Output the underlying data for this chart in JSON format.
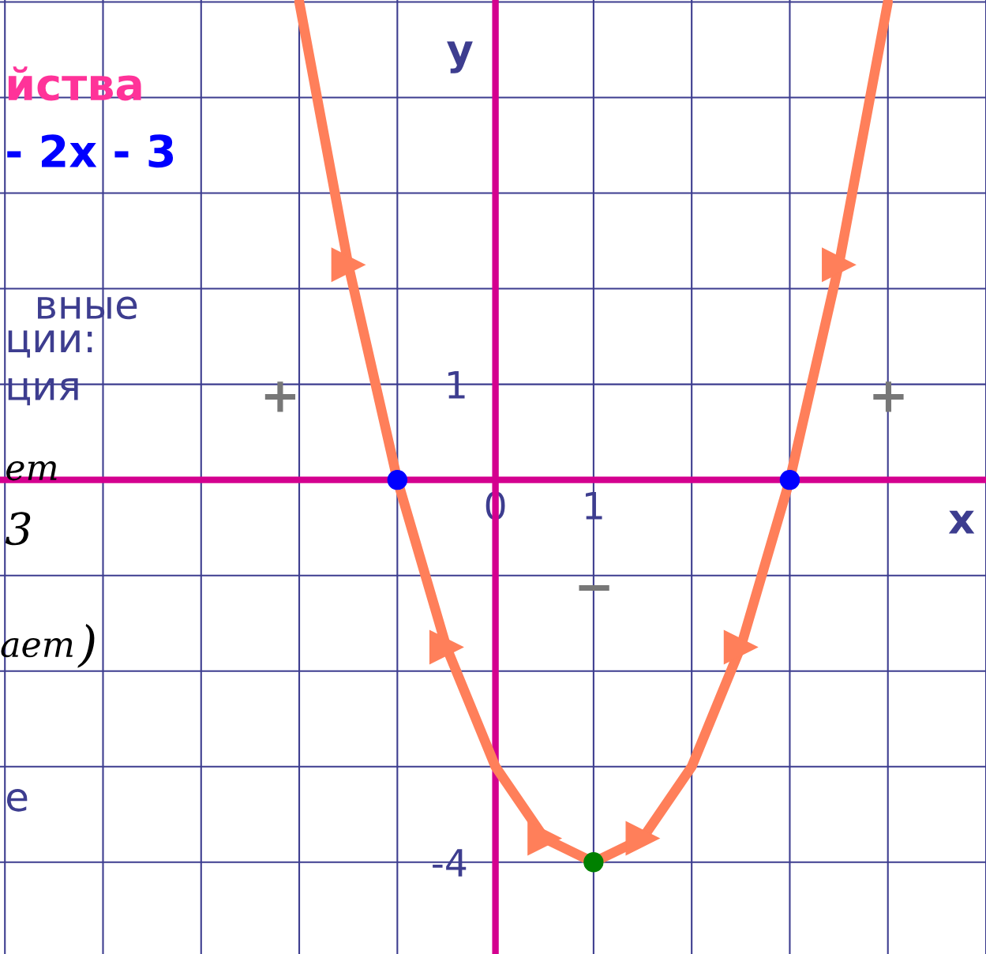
{
  "chart_data": {
    "type": "line",
    "xlabel": "x",
    "ylabel": "y",
    "xlim": [
      -5.05,
      5.0
    ],
    "ylim": [
      -4.96,
      5.02
    ],
    "xticks": [
      {
        "value": -5,
        "label": null
      },
      {
        "value": -4,
        "label": null
      },
      {
        "value": -3,
        "label": null
      },
      {
        "value": -2,
        "label": null
      },
      {
        "value": -1,
        "label": null
      },
      0,
      1,
      {
        "value": 2,
        "label": null
      },
      {
        "value": 3,
        "label": null
      },
      {
        "value": 4,
        "label": null
      },
      {
        "value": 5,
        "label": null
      }
    ],
    "yticks": [
      {
        "value": -4,
        "label": "-4"
      },
      {
        "value": -3,
        "label": null
      },
      {
        "value": -2,
        "label": null
      },
      {
        "value": -1,
        "label": null
      },
      {
        "value": 0,
        "label": null
      },
      1,
      {
        "value": 2,
        "label": null
      },
      {
        "value": 3,
        "label": null
      },
      {
        "value": 4,
        "label": null
      },
      {
        "value": 5,
        "label": null
      }
    ],
    "grid": true,
    "series": [
      {
        "type": "line",
        "color": "#ff7f5a",
        "x": [
          -2,
          -1.5,
          -1,
          -0.5,
          0,
          0.5,
          1,
          1.5,
          2,
          2.5,
          3,
          3.5,
          4
        ],
        "values": [
          5,
          2.25,
          0,
          -1.75,
          -3,
          -3.75,
          -4,
          -3.75,
          -3,
          -1.75,
          0,
          2.25,
          5
        ]
      },
      {
        "type": "scatter",
        "color": "#0000ff",
        "x": [
          -1,
          3
        ],
        "values": [
          0,
          0
        ]
      },
      {
        "type": "scatter",
        "color": "#008000",
        "x": [
          1
        ],
        "values": [
          -4
        ]
      }
    ],
    "annotations": [
      "йства",
      "- 2x - 3",
      "вные",
      "ции:",
      "ция",
      "ет",
      "3",
      ")",
      "ает",
      "е",
      "+",
      "+",
      "−"
    ]
  }
}
